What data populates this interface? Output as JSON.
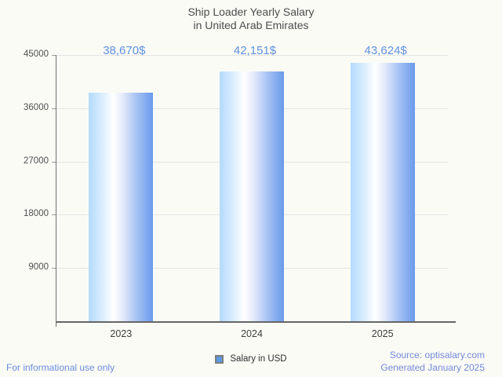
{
  "title": {
    "line1": "Ship Loader Yearly Salary",
    "line2": "in United Arab Emirates"
  },
  "chart_data": {
    "type": "bar",
    "title": "Ship Loader Yearly Salary in United Arab Emirates",
    "categories": [
      "2023",
      "2024",
      "2025"
    ],
    "values": [
      38670,
      42151,
      43624
    ],
    "value_labels": [
      "38,670$",
      "42,151$",
      "43,624$"
    ],
    "series_name": "Salary in USD",
    "xlabel": "",
    "ylabel": "",
    "ylim": [
      0,
      45000
    ],
    "yticks": [
      9000,
      18000,
      27000,
      36000,
      45000
    ],
    "grid": "horizontal",
    "legend_position": "bottom"
  },
  "legend": {
    "label": "Salary in USD",
    "marker_color": "#5d9ae4"
  },
  "footer": {
    "left": "For informational use only",
    "source": "Source: optisalary.com",
    "generated": "Generated January 2025"
  },
  "colors": {
    "background": "#fbfbf6",
    "bar_gradient_left": "#b3dafc",
    "bar_gradient_mid": "#ffffff",
    "bar_gradient_right": "#6a9aec",
    "value_label": "#5f91e2",
    "footer_blue": "#6a8ce0",
    "gridline": "#e4e4e4",
    "axis": "#666666",
    "title_text": "#4c4c4c"
  }
}
